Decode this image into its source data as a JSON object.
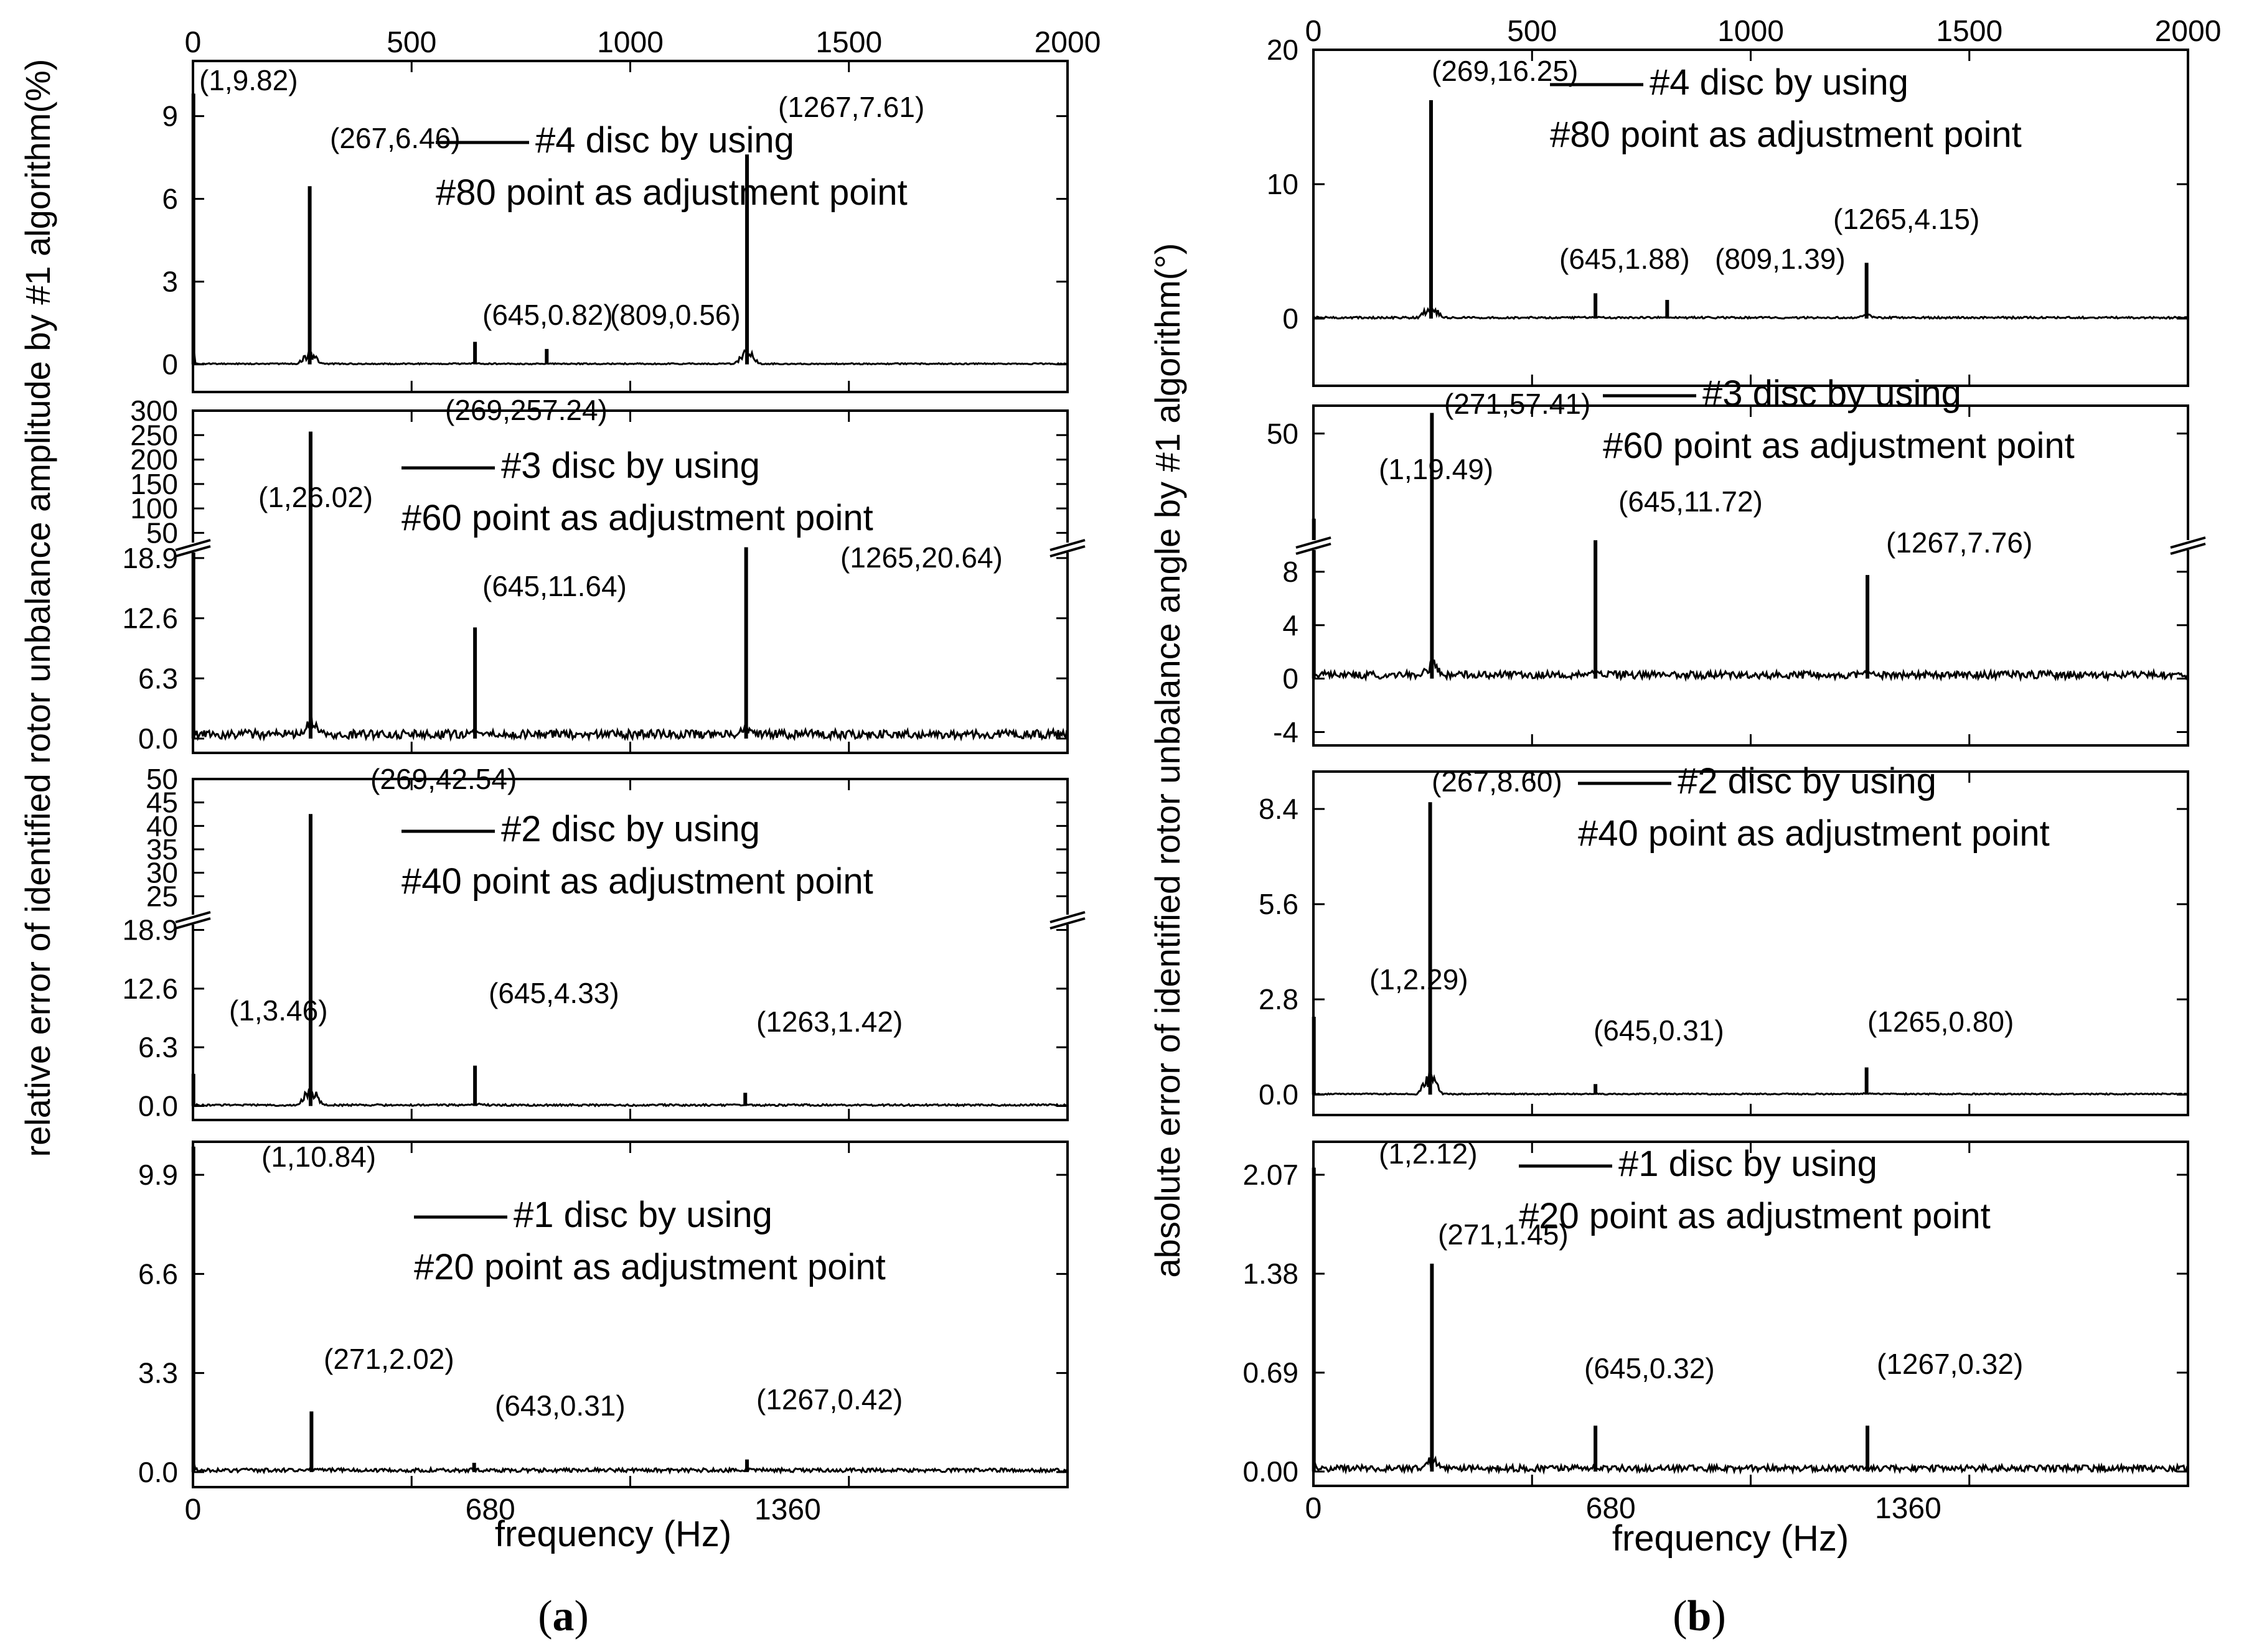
{
  "figure": {
    "x_axis_title": "frequency (Hz)",
    "top_tick_labels": [
      "0",
      "500",
      "1000",
      "1500",
      "2000"
    ],
    "bottom_tick_labels": [
      "0",
      "680",
      "1360"
    ],
    "panel_a": {
      "ylabel": "relative error of identified rotor unbalance amplitude by #1 algorithm(%)",
      "caption_letter": "a"
    },
    "panel_b": {
      "ylabel": "absolute error of identified rotor unbalance angle by #1 algorithm(°)",
      "caption_letter": "b"
    }
  },
  "chart_data": [
    {
      "id": "a4",
      "type": "line",
      "panel": "a",
      "legend": [
        "#4 disc by using",
        "#80 point as adjustment point"
      ],
      "xlim": [
        0,
        2000
      ],
      "ylim": [
        -1,
        11
      ],
      "yticks": [
        "0",
        "3",
        "6",
        "9"
      ],
      "ytick_values": [
        0,
        3,
        6,
        9
      ],
      "peaks": [
        {
          "x": 1,
          "y": 9.82,
          "label": "(1,9.82)"
        },
        {
          "x": 267,
          "y": 6.46,
          "label": "(267,6.46)"
        },
        {
          "x": 645,
          "y": 0.82,
          "label": "(645,0.82)"
        },
        {
          "x": 809,
          "y": 0.56,
          "label": "(809,0.56)"
        },
        {
          "x": 1267,
          "y": 7.61,
          "label": "(1267,7.61)"
        }
      ]
    },
    {
      "id": "a3",
      "type": "line",
      "panel": "a",
      "legend": [
        "#3 disc by using",
        "#60 point as adjustment point"
      ],
      "xlim": [
        0,
        2000
      ],
      "broken_axis": {
        "lower": [
          -1.5,
          20
        ],
        "upper": [
          20,
          300
        ]
      },
      "yticks": [
        "0.0",
        "6.3",
        "12.6",
        "18.9",
        "50",
        "100",
        "150",
        "200",
        "250",
        "300"
      ],
      "ytick_values": [
        0,
        6.3,
        12.6,
        18.9,
        50,
        100,
        150,
        200,
        250,
        300
      ],
      "peaks": [
        {
          "x": 1,
          "y": 26.02,
          "label": "(1,26.02)"
        },
        {
          "x": 269,
          "y": 257.24,
          "label": "(269,257.24)"
        },
        {
          "x": 645,
          "y": 11.64,
          "label": "(645,11.64)"
        },
        {
          "x": 1265,
          "y": 20.64,
          "label": "(1265,20.64)"
        }
      ]
    },
    {
      "id": "a2",
      "type": "line",
      "panel": "a",
      "legend": [
        "#2 disc by using",
        "#40 point as adjustment point"
      ],
      "xlim": [
        0,
        2000
      ],
      "broken_axis": {
        "lower": [
          -1.5,
          20
        ],
        "upper": [
          20,
          50
        ]
      },
      "yticks": [
        "0.0",
        "6.3",
        "12.6",
        "18.9",
        "25",
        "30",
        "35",
        "40",
        "45",
        "50"
      ],
      "ytick_values": [
        0,
        6.3,
        12.6,
        18.9,
        25,
        30,
        35,
        40,
        45,
        50
      ],
      "peaks": [
        {
          "x": 1,
          "y": 3.46,
          "label": "(1,3.46)"
        },
        {
          "x": 269,
          "y": 42.54,
          "label": "(269,42.54)"
        },
        {
          "x": 645,
          "y": 4.33,
          "label": "(645,4.33)"
        },
        {
          "x": 1263,
          "y": 1.42,
          "label": "(1263,1.42)"
        }
      ]
    },
    {
      "id": "a1",
      "type": "line",
      "panel": "a",
      "legend": [
        "#1 disc by using",
        "#20 point as adjustment point"
      ],
      "xlim": [
        0,
        2000
      ],
      "ylim": [
        -0.5,
        11
      ],
      "yticks": [
        "0.0",
        "3.3",
        "6.6",
        "9.9"
      ],
      "ytick_values": [
        0,
        3.3,
        6.6,
        9.9
      ],
      "peaks": [
        {
          "x": 1,
          "y": 10.84,
          "label": "(1,10.84)"
        },
        {
          "x": 271,
          "y": 2.02,
          "label": "(271,2.02)"
        },
        {
          "x": 643,
          "y": 0.31,
          "label": "(643,0.31)"
        },
        {
          "x": 1267,
          "y": 0.42,
          "label": "(1267,0.42)"
        }
      ]
    },
    {
      "id": "b4",
      "type": "line",
      "panel": "b",
      "legend": [
        "#4 disc by using",
        "#80 point as adjustment point"
      ],
      "xlim": [
        0,
        2000
      ],
      "ylim": [
        -5,
        20
      ],
      "yticks": [
        "0",
        "10",
        "20"
      ],
      "ytick_values": [
        0,
        10,
        20
      ],
      "peaks": [
        {
          "x": 269,
          "y": 16.25,
          "label": "(269,16.25)"
        },
        {
          "x": 645,
          "y": 1.88,
          "label": "(645,1.88)"
        },
        {
          "x": 809,
          "y": 1.39,
          "label": "(809,1.39)"
        },
        {
          "x": 1265,
          "y": 4.15,
          "label": "(1265,4.15)"
        }
      ]
    },
    {
      "id": "b3",
      "type": "line",
      "panel": "b",
      "legend": [
        "#3 disc by using",
        "#60 point as adjustment point"
      ],
      "xlim": [
        0,
        2000
      ],
      "broken_axis": {
        "lower": [
          -5,
          10
        ],
        "upper": [
          10,
          60
        ]
      },
      "yticks": [
        "-4",
        "0",
        "4",
        "8",
        "50"
      ],
      "ytick_values": [
        -4,
        0,
        4,
        8,
        50
      ],
      "peaks": [
        {
          "x": 1,
          "y": 19.49,
          "label": "(1,19.49)"
        },
        {
          "x": 271,
          "y": 57.41,
          "label": "(271,57.41)"
        },
        {
          "x": 645,
          "y": 11.72,
          "label": "(645,11.72)"
        },
        {
          "x": 1267,
          "y": 7.76,
          "label": "(1267,7.76)"
        }
      ]
    },
    {
      "id": "b2",
      "type": "line",
      "panel": "b",
      "legend": [
        "#2 disc by using",
        "#40 point as adjustment point"
      ],
      "xlim": [
        0,
        2000
      ],
      "ylim": [
        -0.6,
        9.5
      ],
      "yticks": [
        "0.0",
        "2.8",
        "5.6",
        "8.4"
      ],
      "ytick_values": [
        0,
        2.8,
        5.6,
        8.4
      ],
      "peaks": [
        {
          "x": 1,
          "y": 2.29,
          "label": "(1,2.29)"
        },
        {
          "x": 267,
          "y": 8.6,
          "label": "(267,8.60)"
        },
        {
          "x": 645,
          "y": 0.31,
          "label": "(645,0.31)"
        },
        {
          "x": 1265,
          "y": 0.8,
          "label": "(1265,0.80)"
        }
      ]
    },
    {
      "id": "b1",
      "type": "line",
      "panel": "b",
      "legend": [
        "#1 disc by using",
        "#20 point as adjustment point"
      ],
      "xlim": [
        0,
        2000
      ],
      "ylim": [
        -0.1,
        2.3
      ],
      "yticks": [
        "0.00",
        "0.69",
        "1.38",
        "2.07"
      ],
      "ytick_values": [
        0,
        0.69,
        1.38,
        2.07
      ],
      "peaks": [
        {
          "x": 1,
          "y": 2.12,
          "label": "(1,2.12)"
        },
        {
          "x": 271,
          "y": 1.45,
          "label": "(271,1.45)"
        },
        {
          "x": 645,
          "y": 0.32,
          "label": "(645,0.32)"
        },
        {
          "x": 1267,
          "y": 0.32,
          "label": "(1267,0.32)"
        }
      ]
    }
  ]
}
